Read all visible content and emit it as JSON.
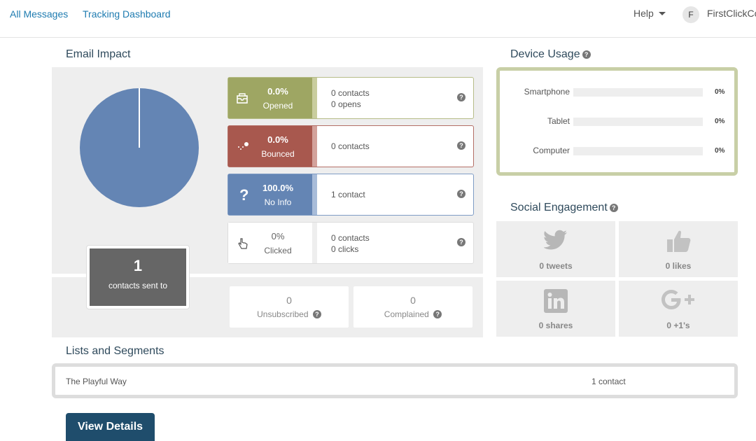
{
  "nav": {
    "all_messages": "All Messages",
    "tracking_dashboard": "Tracking Dashboard",
    "help": "Help",
    "avatar_initial": "F",
    "user": "FirstClickCo"
  },
  "email_impact": {
    "title": "Email Impact",
    "sent_count": "1",
    "sent_label": "contacts sent to",
    "stats": [
      {
        "pct": "0.0%",
        "label": "Opened",
        "line1": "0 contacts",
        "line2": "0 opens",
        "color": "#9ea663",
        "strip": "#c9cd9e"
      },
      {
        "pct": "0.0%",
        "label": "Bounced",
        "line1": "0 contacts",
        "line2": "",
        "color": "#a8584e",
        "strip": "#d3a29b"
      },
      {
        "pct": "100.0%",
        "label": "No Info",
        "line1": "1 contact",
        "line2": "",
        "color": "#6485b4",
        "strip": "#a8bcd9"
      },
      {
        "pct": "0%",
        "label": "Clicked",
        "line1": "0 contacts",
        "line2": "0 clicks",
        "color": "#ffffff",
        "strip": "#eeeeee"
      }
    ],
    "unsubscribed": {
      "value": "0",
      "label": "Unsubscribed"
    },
    "complained": {
      "value": "0",
      "label": "Complained"
    },
    "pie_no_info_fraction": 1.0,
    "pie_color": "#6485b4"
  },
  "device_usage": {
    "title": "Device Usage",
    "rows": [
      {
        "name": "Smartphone",
        "value": "0%",
        "fraction": 0
      },
      {
        "name": "Tablet",
        "value": "0%",
        "fraction": 0
      },
      {
        "name": "Computer",
        "value": "0%",
        "fraction": 0
      }
    ]
  },
  "social": {
    "title": "Social Engagement",
    "tweets": "0 tweets",
    "likes": "0 likes",
    "shares": "0 shares",
    "plusones": "0 +1's"
  },
  "lists": {
    "title": "Lists and Segments",
    "items": [
      {
        "name": "The Playful Way",
        "count": "1 contact"
      }
    ]
  },
  "view_details": "View Details"
}
